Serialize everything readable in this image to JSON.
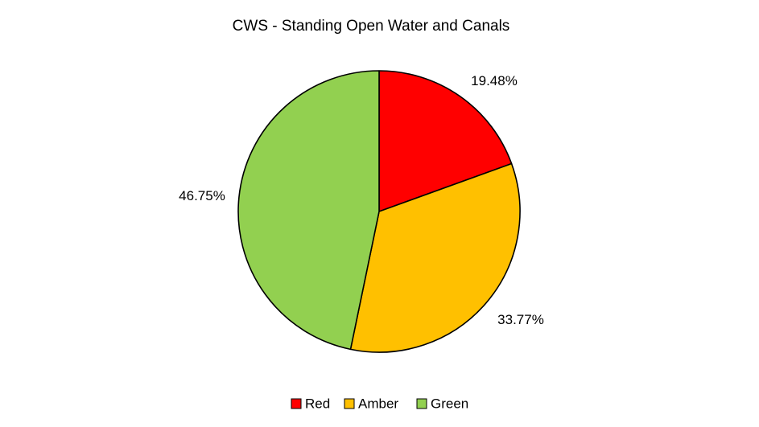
{
  "chart_data": {
    "type": "pie",
    "title": "CWS - Standing Open Water and Canals",
    "slices": [
      {
        "label": "Red",
        "value": 19.48,
        "data_label": "19.48%",
        "color": "#ff0000"
      },
      {
        "label": "Amber",
        "value": 33.77,
        "data_label": "33.77%",
        "color": "#ffc000"
      },
      {
        "label": "Green",
        "value": 46.75,
        "data_label": "46.75%",
        "color": "#92d050"
      }
    ],
    "start_angle_deg": 0,
    "direction": "clockwise",
    "legend_position": "bottom",
    "slice_outline_color": "#000000"
  }
}
